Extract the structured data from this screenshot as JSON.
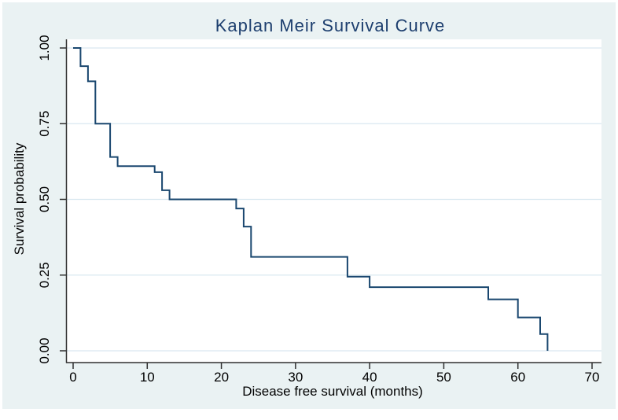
{
  "page": {
    "background": "#ffffff"
  },
  "graph": {
    "background": "#eaf2f3",
    "plot_background": "#ffffff",
    "gridline_color": "#d9e8f0",
    "axis_color": "#303030",
    "tick_text_color": "#000000",
    "title_color": "#1c3e6e"
  },
  "chart_data": {
    "type": "line",
    "subtype": "kaplan-meier-step",
    "title": "Kaplan Meir Survival Curve",
    "xlabel": "Disease free survival (months)",
    "ylabel": "Survival probability",
    "line_color": "#1a476f",
    "line_width": 2,
    "grid": "horizontal-only",
    "legend": "none",
    "xlim": [
      0,
      70
    ],
    "ylim": [
      0.0,
      1.0
    ],
    "x_ticks": [
      0,
      10,
      20,
      30,
      40,
      50,
      60,
      70
    ],
    "x_tick_labels": [
      "0",
      "10",
      "20",
      "30",
      "40",
      "50",
      "60",
      "70"
    ],
    "y_ticks": [
      0.0,
      0.25,
      0.5,
      0.75,
      1.0
    ],
    "y_tick_labels": [
      "0.00",
      "0.25",
      "0.50",
      "0.75",
      "1.00"
    ],
    "steps_note": "step points as [time_months, survival_probability]; curve is flat between points and drops vertically at each time",
    "steps": [
      [
        0,
        1.0
      ],
      [
        1,
        0.94
      ],
      [
        2,
        0.89
      ],
      [
        3,
        0.75
      ],
      [
        5,
        0.64
      ],
      [
        6,
        0.61
      ],
      [
        11,
        0.59
      ],
      [
        12,
        0.53
      ],
      [
        13,
        0.5
      ],
      [
        22,
        0.47
      ],
      [
        23,
        0.41
      ],
      [
        24,
        0.31
      ],
      [
        37,
        0.245
      ],
      [
        40,
        0.21
      ],
      [
        56,
        0.17
      ],
      [
        60,
        0.11
      ],
      [
        63,
        0.055
      ],
      [
        64,
        0.0
      ]
    ]
  }
}
